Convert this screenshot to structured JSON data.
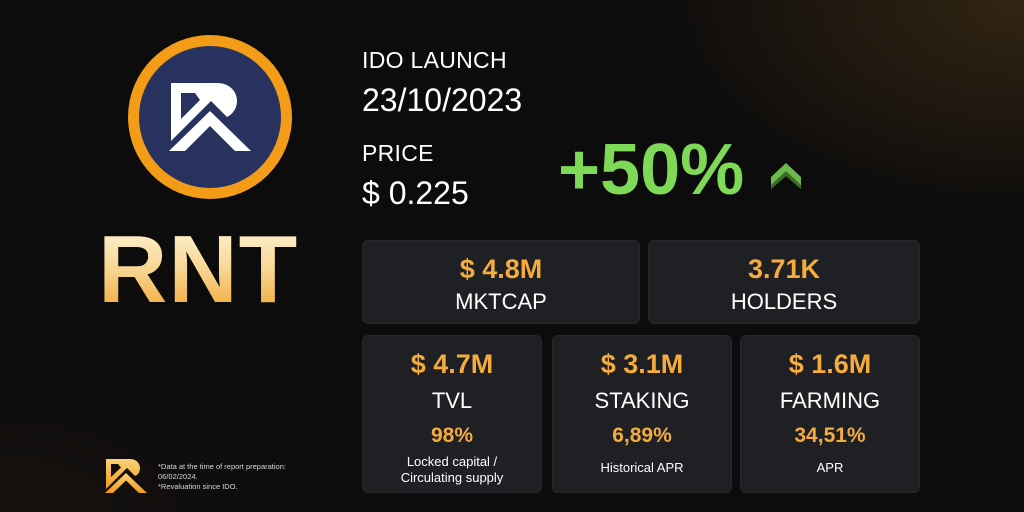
{
  "brand": {
    "ticker": "RNT",
    "logo_icon": "rnt-logo-icon",
    "ring_color": "#f39c17",
    "badge_color": "#27325e"
  },
  "launch": {
    "label": "IDO LAUNCH",
    "date": "23/10/2023"
  },
  "price": {
    "label": "PRICE",
    "value": "$ 0.225",
    "change": "+50%",
    "change_icon": "chevron-up-icon",
    "change_color": "#7ed957"
  },
  "stats_top": [
    {
      "value": "$ 4.8M",
      "label": "MKTCAP"
    },
    {
      "value": "3.71K",
      "label": "HOLDERS"
    }
  ],
  "stats_bottom": [
    {
      "value": "$ 4.7M",
      "label": "TVL",
      "sub_value": "98%",
      "note": "Locked capital / Circulating supply"
    },
    {
      "value": "$ 3.1M",
      "label": "STAKING",
      "sub_value": "6,89%",
      "note": "Historical APR"
    },
    {
      "value": "$ 1.6M",
      "label": "FARMING",
      "sub_value": "34,51%",
      "note": "APR"
    }
  ],
  "footnote": {
    "line1": "*Data at the time of report preparation:",
    "line2": "06/02/2024.",
    "line3": "*Revaluation since IDO."
  },
  "accent_color": "#f5ac3d",
  "card_color": "#1e2024"
}
